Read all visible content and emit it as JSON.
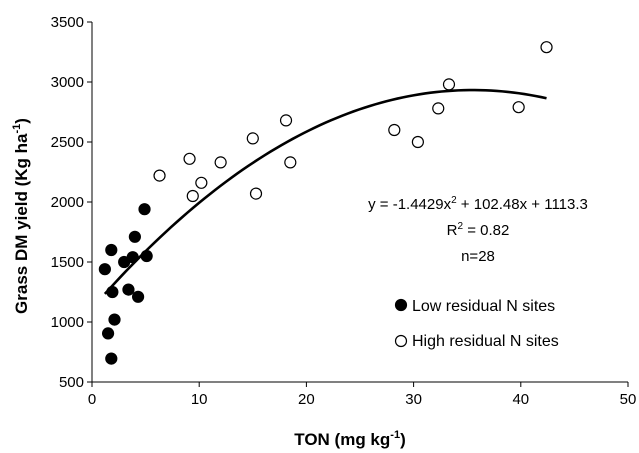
{
  "chart_data": {
    "type": "scatter",
    "xlabel": {
      "text": "TON (mg kg",
      "sup": "-1",
      "end": ")"
    },
    "ylabel": {
      "text": "Grass DM yield (Kg ha",
      "sup": "-1",
      "end": ")"
    },
    "xlim": [
      0,
      50
    ],
    "ylim": [
      500,
      3500
    ],
    "xticks": [
      0,
      10,
      20,
      30,
      40,
      50
    ],
    "yticks": [
      500,
      1000,
      1500,
      2000,
      2500,
      3000,
      3500
    ],
    "grid": false,
    "legend_position": "right",
    "series": [
      {
        "name": "Low residual N sites",
        "marker": "filled-circle",
        "color": "#000000",
        "points": [
          [
            1.2,
            1440
          ],
          [
            1.5,
            905
          ],
          [
            1.8,
            1600
          ],
          [
            1.9,
            1250
          ],
          [
            1.8,
            695
          ],
          [
            2.1,
            1020
          ],
          [
            3.0,
            1500
          ],
          [
            3.4,
            1270
          ],
          [
            3.8,
            1540
          ],
          [
            4.0,
            1710
          ],
          [
            4.3,
            1210
          ],
          [
            4.9,
            1940
          ],
          [
            5.1,
            1550
          ]
        ]
      },
      {
        "name": "High residual N sites",
        "marker": "open-circle",
        "color": "#000000",
        "points": [
          [
            6.3,
            2220
          ],
          [
            9.1,
            2360
          ],
          [
            9.4,
            2050
          ],
          [
            10.2,
            2160
          ],
          [
            12.0,
            2330
          ],
          [
            15.0,
            2530
          ],
          [
            15.3,
            2070
          ],
          [
            18.1,
            2680
          ],
          [
            18.5,
            2330
          ],
          [
            28.2,
            2600
          ],
          [
            30.4,
            2500
          ],
          [
            32.3,
            2780
          ],
          [
            33.3,
            2980
          ],
          [
            39.8,
            2790
          ],
          [
            42.4,
            3290
          ]
        ]
      }
    ],
    "trendline": {
      "type": "polynomial",
      "degree": 2,
      "coefficients": [
        -1.4429,
        102.48,
        1113.3
      ],
      "x_range": [
        1.2,
        42.4
      ]
    },
    "annotations": {
      "equation": {
        "y_part": "y = -1.4429x",
        "sup": "2",
        "rest": " + 102.48x + 1113.3"
      },
      "r2": {
        "r": "R",
        "sup": "2",
        "rest": " = 0.82"
      },
      "n": "n=28"
    }
  }
}
